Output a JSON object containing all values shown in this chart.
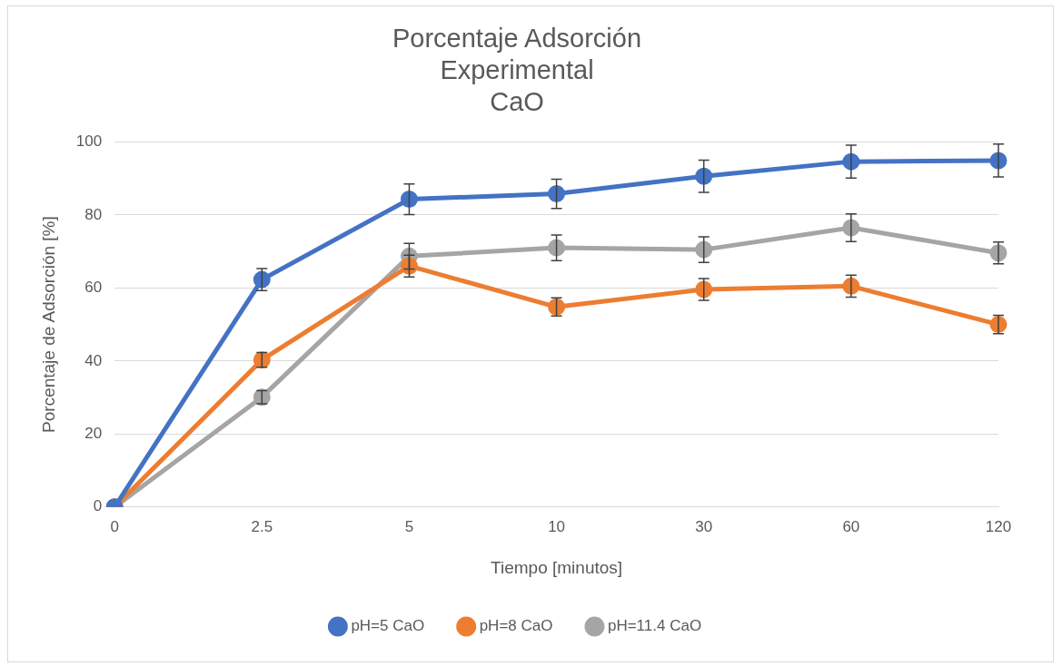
{
  "chart_data": {
    "type": "line",
    "title": "Porcentaje Adsorción\nExperimental\nCaO",
    "xlabel": "Tiempo [minutos]",
    "ylabel": "Porcentaje de Adsorción [%]",
    "categories": [
      "0",
      "2.5",
      "5",
      "10",
      "30",
      "60",
      "120"
    ],
    "series": [
      {
        "name": "pH=5 CaO",
        "color": "#4472c4",
        "values": [
          0,
          62.3,
          84.3,
          85.8,
          90.6,
          94.6,
          94.9
        ],
        "errors": [
          0,
          3,
          4.2,
          4,
          4.4,
          4.5,
          4.5
        ]
      },
      {
        "name": "pH=8 CaO",
        "color": "#ed7d31",
        "values": [
          0,
          40.3,
          66,
          54.8,
          59.6,
          60.5,
          50
        ],
        "errors": [
          0,
          2,
          3,
          2.5,
          3,
          3,
          2.5
        ]
      },
      {
        "name": "pH=11.4 CaO",
        "color": "#a5a5a5",
        "values": [
          0,
          30.1,
          68.7,
          71,
          70.5,
          76.5,
          69.6
        ],
        "errors": [
          0,
          1.8,
          3.5,
          3.5,
          3.5,
          3.8,
          3
        ]
      }
    ],
    "ylim": [
      0,
      100
    ],
    "yticks": [
      0,
      20,
      40,
      60,
      80,
      100
    ],
    "grid": "y",
    "legend": "bottom",
    "marker": "circle",
    "line_style": "solid"
  }
}
